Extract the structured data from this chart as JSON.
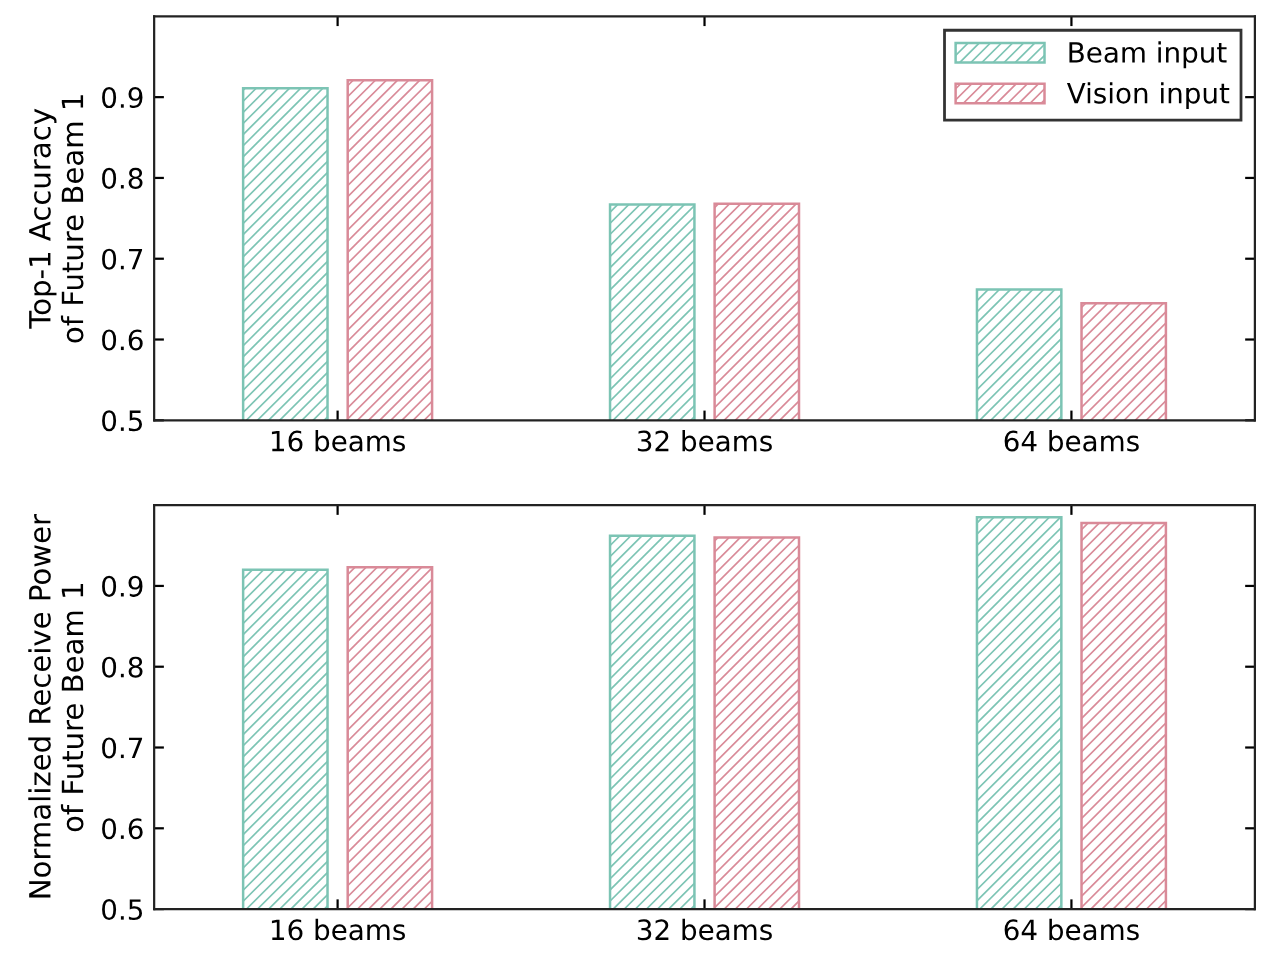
{
  "chart_data": [
    {
      "type": "bar",
      "ylabel": "Top-1 Accuracy\nof Future Beam 1",
      "categories": [
        "16 beams",
        "32 beams",
        "64 beams"
      ],
      "series": [
        {
          "name": "Beam input",
          "color": "#7cc4b4",
          "values": [
            0.911,
            0.767,
            0.662
          ]
        },
        {
          "name": "Vision input",
          "color": "#d98a98",
          "values": [
            0.921,
            0.768,
            0.645
          ]
        }
      ],
      "ylim": [
        0.5,
        1.0
      ],
      "yticks": [
        0.5,
        0.6,
        0.7,
        0.8,
        0.9
      ],
      "grid": false,
      "legend": "top right"
    },
    {
      "type": "bar",
      "ylabel": "Normalized Receive Power\nof Future Beam 1",
      "categories": [
        "16 beams",
        "32 beams",
        "64 beams"
      ],
      "series": [
        {
          "color": "#7cc4b4",
          "values": [
            0.92,
            0.962,
            0.985
          ]
        },
        {
          "color": "#d98a98",
          "values": [
            0.923,
            0.96,
            0.978
          ]
        }
      ],
      "ylim": [
        0.5,
        1.0
      ],
      "yticks": [
        0.5,
        0.6,
        0.7,
        0.8,
        0.9
      ],
      "grid": false,
      "legend": false
    }
  ]
}
